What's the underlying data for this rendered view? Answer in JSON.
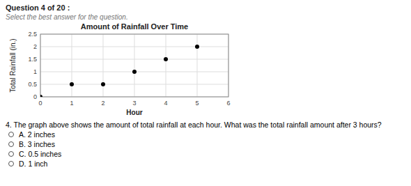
{
  "header": "Question 4 of 20 :",
  "subheader": "Select the best answer for the question.",
  "question": "4.   The graph above shows the amount of total rainfall at each hour. What was the total rainfall amount after 3 hours?",
  "answers": [
    "A. 2 inches",
    "B. 3 inches",
    "C. 0.5 inches",
    "D. 1 inch"
  ],
  "chart_data": {
    "type": "scatter",
    "title": "Amount of Rainfall Over Time",
    "x_label": "Hour",
    "y_label": "Total Rainfall (in.)",
    "x": [
      0,
      1,
      2,
      3,
      4,
      5
    ],
    "values": [
      0,
      0.5,
      0.5,
      1,
      1.5,
      2
    ],
    "color": "#000000",
    "xlim": [
      0,
      6
    ],
    "ylim": [
      0,
      2.5
    ],
    "xticks": [
      0,
      1,
      2,
      3,
      4,
      5,
      6
    ],
    "yticks": [
      0,
      0.5,
      1,
      1.5,
      2,
      2.5
    ],
    "grid": true
  }
}
